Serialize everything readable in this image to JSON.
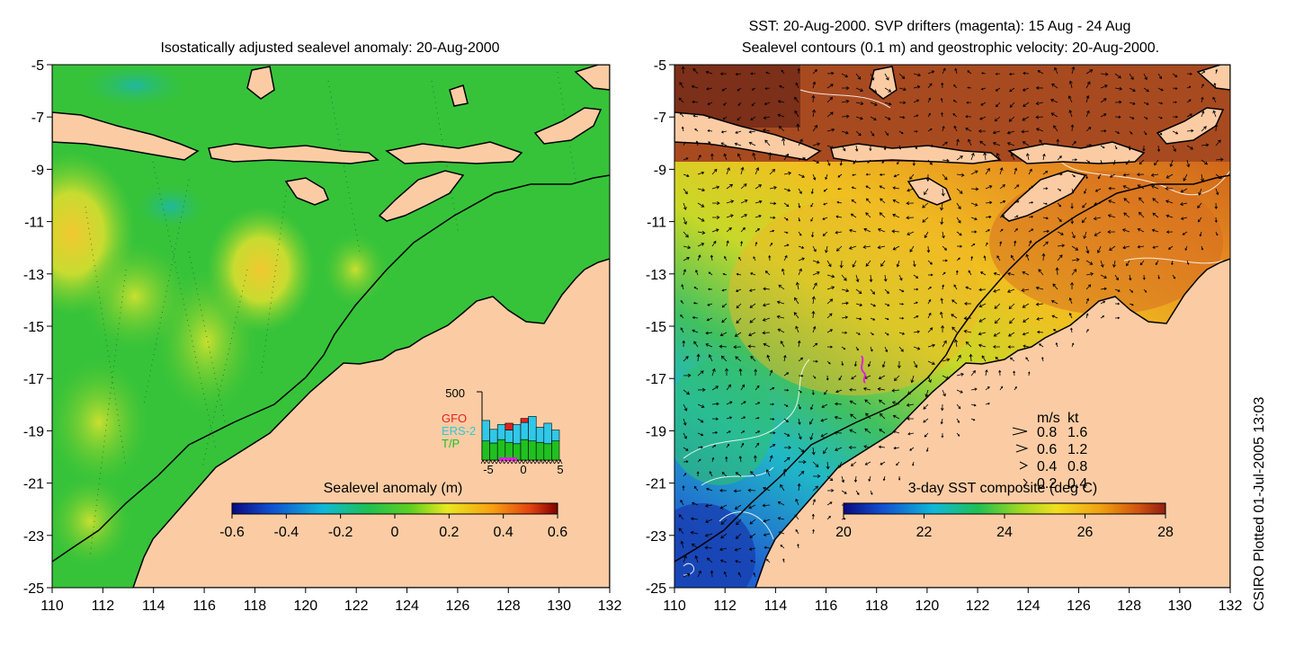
{
  "chart_data": [
    {
      "type": "heatmap",
      "title": "Isostatically adjusted sealevel anomaly: 20-Aug-2000",
      "xlim": [
        110,
        132
      ],
      "ylim": [
        -25,
        -5
      ],
      "x_ticks": [
        "110",
        "112",
        "114",
        "116",
        "118",
        "120",
        "122",
        "124",
        "126",
        "128",
        "130",
        "132"
      ],
      "y_ticks": [
        "-5",
        "-7",
        "-9",
        "-11",
        "-13",
        "-15",
        "-17",
        "-19",
        "-21",
        "-23",
        "-25"
      ],
      "colorbar": {
        "label": "Sealevel anomaly (m)",
        "range": [
          -0.6,
          0.6
        ],
        "tick_labels": [
          "-0.6",
          "-0.4",
          "-0.2",
          "0",
          "0.2",
          "0.4",
          "0.6"
        ]
      },
      "inset": {
        "ymax_label": "500",
        "x_tick_labels": [
          "-5",
          "0",
          "5"
        ],
        "legend": [
          {
            "name": "GFO",
            "color": "#e02020"
          },
          {
            "name": "ERS-2",
            "color": "#30c8d8"
          },
          {
            "name": "T/P",
            "color": "#20c020"
          }
        ],
        "bars": [
          {
            "tp": 0.28,
            "ers": 0.3,
            "gfo": 0.0
          },
          {
            "tp": 0.25,
            "ers": 0.2,
            "gfo": 0.0
          },
          {
            "tp": 0.3,
            "ers": 0.22,
            "gfo": 0.0
          },
          {
            "tp": 0.26,
            "ers": 0.18,
            "gfo": 0.1
          },
          {
            "tp": 0.24,
            "ers": 0.28,
            "gfo": 0.0
          },
          {
            "tp": 0.3,
            "ers": 0.25,
            "gfo": 0.06
          },
          {
            "tp": 0.28,
            "ers": 0.36,
            "gfo": 0.0
          },
          {
            "tp": 0.26,
            "ers": 0.22,
            "gfo": 0.0
          },
          {
            "tp": 0.24,
            "ers": 0.3,
            "gfo": 0.0
          },
          {
            "tp": 0.28,
            "ers": 0.16,
            "gfo": 0.0
          }
        ]
      }
    },
    {
      "type": "heatmap",
      "title": "SST: 20-Aug-2000. SVP drifters (magenta): 15 Aug - 24 Aug",
      "subtitle": "Sealevel contours (0.1 m) and geostrophic velocity: 20-Aug-2000.",
      "xlim": [
        110,
        132
      ],
      "ylim": [
        -25,
        -5
      ],
      "x_ticks": [
        "110",
        "112",
        "114",
        "116",
        "118",
        "120",
        "122",
        "124",
        "126",
        "128",
        "130",
        "132"
      ],
      "y_ticks": [
        "-5",
        "-7",
        "-9",
        "-11",
        "-13",
        "-15",
        "-17",
        "-19",
        "-21",
        "-23",
        "-25"
      ],
      "colorbar": {
        "label": "3-day SST composite (deg C)",
        "range": [
          20,
          28
        ],
        "tick_labels": [
          "20",
          "22",
          "24",
          "26",
          "28"
        ]
      },
      "velocity_key": {
        "header_ms": "m/s",
        "header_kt": "kt",
        "rows": [
          {
            "ms": "0.8",
            "kt": "1.6"
          },
          {
            "ms": "0.6",
            "kt": "1.2"
          },
          {
            "ms": "0.4",
            "kt": "0.8"
          },
          {
            "ms": "0.2",
            "kt": "0.4"
          }
        ]
      }
    }
  ],
  "plot_footer": "CSIRO Plotted 01-Jul-2005 13:03"
}
